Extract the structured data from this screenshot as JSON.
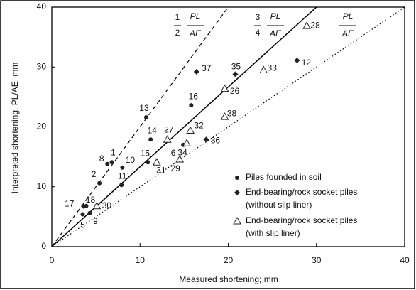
{
  "chart_data": {
    "type": "scatter",
    "x_label": "Measured shortening; mm",
    "y_label": "Interpreted shortening, PL/AE, mm",
    "xlim": [
      0,
      40
    ],
    "xticks": [
      0,
      10,
      20,
      30,
      40
    ],
    "ylim": [
      0,
      40
    ],
    "yticks": [
      0,
      10,
      20,
      30,
      40
    ],
    "reference_lines": [
      {
        "coef_num": "1",
        "coef_den": "2",
        "expr_num": "PL",
        "expr_den": "AE",
        "slope": 2,
        "style": "dashed"
      },
      {
        "coef_num": "3",
        "coef_den": "4",
        "expr_num": "PL",
        "expr_den": "AE",
        "slope": 1.3333,
        "style": "solid"
      },
      {
        "expr_num": "PL",
        "expr_den": "AE",
        "slope": 1,
        "style": "dotted"
      }
    ],
    "series": [
      {
        "name": [
          "Piles founded in soil"
        ],
        "marker": "circle",
        "color": "#222222",
        "labels": [
          "17",
          "18",
          "5",
          "9",
          "2",
          "8",
          "1",
          "10",
          "11",
          "15",
          "14",
          "16",
          "13",
          "6"
        ],
        "x": [
          3.6,
          3.9,
          3.5,
          4.3,
          5.4,
          6.3,
          6.8,
          8.0,
          7.9,
          10.9,
          11.2,
          15.8,
          10.7,
          14.9
        ],
        "values": [
          6.7,
          6.8,
          5.4,
          5.6,
          10.6,
          13.8,
          14.1,
          13.2,
          10.3,
          14.1,
          17.9,
          23.6,
          21.6,
          17.0
        ]
      },
      {
        "name": [
          "End-bearing/rock socket piles",
          "(without slip liner)"
        ],
        "marker": "diamond",
        "color": "#222222",
        "labels": [
          "37",
          "35",
          "12",
          "36"
        ],
        "x": [
          16.4,
          20.8,
          27.8,
          17.5
        ],
        "values": [
          29.2,
          28.8,
          31.1,
          17.9
        ]
      },
      {
        "name": [
          "End-bearing/rock socket piles",
          "(with slip liner)"
        ],
        "marker": "triangle",
        "color": "#222222",
        "labels": [
          "30",
          "31",
          "29",
          "27",
          "34",
          "32",
          "26",
          "38",
          "33",
          "28"
        ],
        "x": [
          5.1,
          11.9,
          14.5,
          13.1,
          15.3,
          15.7,
          19.6,
          19.6,
          24.0,
          28.9
        ],
        "values": [
          6.8,
          14.1,
          14.6,
          17.9,
          17.3,
          19.4,
          26.4,
          21.7,
          29.5,
          36.9
        ]
      }
    ]
  }
}
